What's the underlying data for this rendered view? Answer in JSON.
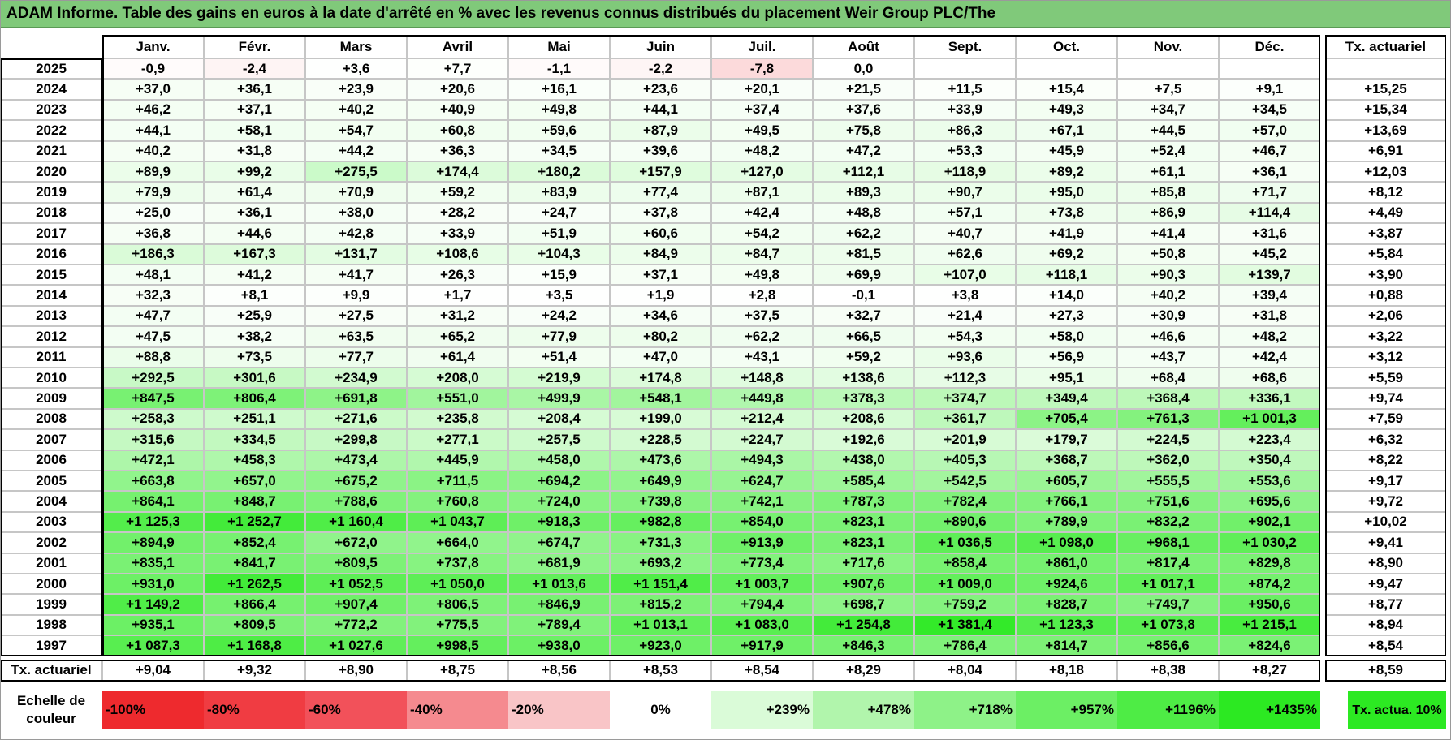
{
  "title": "ADAM Informe. Table des gains en euros à la date d'arrêté en % avec les revenus connus distribués du placement Weir Group PLC/The",
  "chart_data": {
    "type": "table",
    "months": [
      "Janv.",
      "Févr.",
      "Mars",
      "Avril",
      "Mai",
      "Juin",
      "Juil.",
      "Août",
      "Sept.",
      "Oct.",
      "Nov.",
      "Déc."
    ],
    "txa_header": "Tx. actuariel",
    "rows": [
      {
        "year": "2025",
        "values": [
          "-0,9",
          "-2,4",
          "+3,6",
          "+7,7",
          "-1,1",
          "-2,2",
          "-7,8",
          "0,0",
          "",
          "",
          "",
          ""
        ],
        "txa": ""
      },
      {
        "year": "2024",
        "values": [
          "+37,0",
          "+36,1",
          "+23,9",
          "+20,6",
          "+16,1",
          "+23,6",
          "+20,1",
          "+21,5",
          "+11,5",
          "+15,4",
          "+7,5",
          "+9,1"
        ],
        "txa": "+15,25"
      },
      {
        "year": "2023",
        "values": [
          "+46,2",
          "+37,1",
          "+40,2",
          "+40,9",
          "+49,8",
          "+44,1",
          "+37,4",
          "+37,6",
          "+33,9",
          "+49,3",
          "+34,7",
          "+34,5"
        ],
        "txa": "+15,34"
      },
      {
        "year": "2022",
        "values": [
          "+44,1",
          "+58,1",
          "+54,7",
          "+60,8",
          "+59,6",
          "+87,9",
          "+49,5",
          "+75,8",
          "+86,3",
          "+67,1",
          "+44,5",
          "+57,0"
        ],
        "txa": "+13,69"
      },
      {
        "year": "2021",
        "values": [
          "+40,2",
          "+31,8",
          "+44,2",
          "+36,3",
          "+34,5",
          "+39,6",
          "+48,2",
          "+47,2",
          "+53,3",
          "+45,9",
          "+52,4",
          "+46,7"
        ],
        "txa": "+6,91"
      },
      {
        "year": "2020",
        "values": [
          "+89,9",
          "+99,2",
          "+275,5",
          "+174,4",
          "+180,2",
          "+157,9",
          "+127,0",
          "+112,1",
          "+118,9",
          "+89,2",
          "+61,1",
          "+36,1"
        ],
        "txa": "+12,03"
      },
      {
        "year": "2019",
        "values": [
          "+79,9",
          "+61,4",
          "+70,9",
          "+59,2",
          "+83,9",
          "+77,4",
          "+87,1",
          "+89,3",
          "+90,7",
          "+95,0",
          "+85,8",
          "+71,7"
        ],
        "txa": "+8,12"
      },
      {
        "year": "2018",
        "values": [
          "+25,0",
          "+36,1",
          "+38,0",
          "+28,2",
          "+24,7",
          "+37,8",
          "+42,4",
          "+48,8",
          "+57,1",
          "+73,8",
          "+86,9",
          "+114,4"
        ],
        "txa": "+4,49"
      },
      {
        "year": "2017",
        "values": [
          "+36,8",
          "+44,6",
          "+42,8",
          "+33,9",
          "+51,9",
          "+60,6",
          "+54,2",
          "+62,2",
          "+40,7",
          "+41,9",
          "+41,4",
          "+31,6"
        ],
        "txa": "+3,87"
      },
      {
        "year": "2016",
        "values": [
          "+186,3",
          "+167,3",
          "+131,7",
          "+108,6",
          "+104,3",
          "+84,9",
          "+84,7",
          "+81,5",
          "+62,6",
          "+69,2",
          "+50,8",
          "+45,2"
        ],
        "txa": "+5,84"
      },
      {
        "year": "2015",
        "values": [
          "+48,1",
          "+41,2",
          "+41,7",
          "+26,3",
          "+15,9",
          "+37,1",
          "+49,8",
          "+69,9",
          "+107,0",
          "+118,1",
          "+90,3",
          "+139,7"
        ],
        "txa": "+3,90"
      },
      {
        "year": "2014",
        "values": [
          "+32,3",
          "+8,1",
          "+9,9",
          "+1,7",
          "+3,5",
          "+1,9",
          "+2,8",
          "-0,1",
          "+3,8",
          "+14,0",
          "+40,2",
          "+39,4"
        ],
        "txa": "+0,88"
      },
      {
        "year": "2013",
        "values": [
          "+47,7",
          "+25,9",
          "+27,5",
          "+31,2",
          "+24,2",
          "+34,6",
          "+37,5",
          "+32,7",
          "+21,4",
          "+27,3",
          "+30,9",
          "+31,8"
        ],
        "txa": "+2,06"
      },
      {
        "year": "2012",
        "values": [
          "+47,5",
          "+38,2",
          "+63,5",
          "+65,2",
          "+77,9",
          "+80,2",
          "+62,2",
          "+66,5",
          "+54,3",
          "+58,0",
          "+46,6",
          "+48,2"
        ],
        "txa": "+3,22"
      },
      {
        "year": "2011",
        "values": [
          "+88,8",
          "+73,5",
          "+77,7",
          "+61,4",
          "+51,4",
          "+47,0",
          "+43,1",
          "+59,2",
          "+93,6",
          "+56,9",
          "+43,7",
          "+42,4"
        ],
        "txa": "+3,12"
      },
      {
        "year": "2010",
        "values": [
          "+292,5",
          "+301,6",
          "+234,9",
          "+208,0",
          "+219,9",
          "+174,8",
          "+148,8",
          "+138,6",
          "+112,3",
          "+95,1",
          "+68,4",
          "+68,6"
        ],
        "txa": "+5,59"
      },
      {
        "year": "2009",
        "values": [
          "+847,5",
          "+806,4",
          "+691,8",
          "+551,0",
          "+499,9",
          "+548,1",
          "+449,8",
          "+378,3",
          "+374,7",
          "+349,4",
          "+368,4",
          "+336,1"
        ],
        "txa": "+9,74"
      },
      {
        "year": "2008",
        "values": [
          "+258,3",
          "+251,1",
          "+271,6",
          "+235,8",
          "+208,4",
          "+199,0",
          "+212,4",
          "+208,6",
          "+361,7",
          "+705,4",
          "+761,3",
          "+1 001,3"
        ],
        "txa": "+7,59"
      },
      {
        "year": "2007",
        "values": [
          "+315,6",
          "+334,5",
          "+299,8",
          "+277,1",
          "+257,5",
          "+228,5",
          "+224,7",
          "+192,6",
          "+201,9",
          "+179,7",
          "+224,5",
          "+223,4"
        ],
        "txa": "+6,32"
      },
      {
        "year": "2006",
        "values": [
          "+472,1",
          "+458,3",
          "+473,4",
          "+445,9",
          "+458,0",
          "+473,6",
          "+494,3",
          "+438,0",
          "+405,3",
          "+368,7",
          "+362,0",
          "+350,4"
        ],
        "txa": "+8,22"
      },
      {
        "year": "2005",
        "values": [
          "+663,8",
          "+657,0",
          "+675,2",
          "+711,5",
          "+694,2",
          "+649,9",
          "+624,7",
          "+585,4",
          "+542,5",
          "+605,7",
          "+555,5",
          "+553,6"
        ],
        "txa": "+9,17"
      },
      {
        "year": "2004",
        "values": [
          "+864,1",
          "+848,7",
          "+788,6",
          "+760,8",
          "+724,0",
          "+739,8",
          "+742,1",
          "+787,3",
          "+782,4",
          "+766,1",
          "+751,6",
          "+695,6"
        ],
        "txa": "+9,72"
      },
      {
        "year": "2003",
        "values": [
          "+1 125,3",
          "+1 252,7",
          "+1 160,4",
          "+1 043,7",
          "+918,3",
          "+982,8",
          "+854,0",
          "+823,1",
          "+890,6",
          "+789,9",
          "+832,2",
          "+902,1"
        ],
        "txa": "+10,02"
      },
      {
        "year": "2002",
        "values": [
          "+894,9",
          "+852,4",
          "+672,0",
          "+664,0",
          "+674,7",
          "+731,3",
          "+913,9",
          "+823,1",
          "+1 036,5",
          "+1 098,0",
          "+968,1",
          "+1 030,2"
        ],
        "txa": "+9,41"
      },
      {
        "year": "2001",
        "values": [
          "+835,1",
          "+841,7",
          "+809,5",
          "+737,8",
          "+681,9",
          "+693,2",
          "+773,4",
          "+717,6",
          "+858,4",
          "+861,0",
          "+817,4",
          "+829,8"
        ],
        "txa": "+8,90"
      },
      {
        "year": "2000",
        "values": [
          "+931,0",
          "+1 262,5",
          "+1 052,5",
          "+1 050,0",
          "+1 013,6",
          "+1 151,4",
          "+1 003,7",
          "+907,6",
          "+1 009,0",
          "+924,6",
          "+1 017,1",
          "+874,2"
        ],
        "txa": "+9,47"
      },
      {
        "year": "1999",
        "values": [
          "+1 149,2",
          "+866,4",
          "+907,4",
          "+806,5",
          "+846,9",
          "+815,2",
          "+794,4",
          "+698,7",
          "+759,2",
          "+828,7",
          "+749,7",
          "+950,6"
        ],
        "txa": "+8,77"
      },
      {
        "year": "1998",
        "values": [
          "+935,1",
          "+809,5",
          "+772,2",
          "+775,5",
          "+789,4",
          "+1 013,1",
          "+1 083,0",
          "+1 254,8",
          "+1 381,4",
          "+1 123,3",
          "+1 073,8",
          "+1 215,1"
        ],
        "txa": "+8,94"
      },
      {
        "year": "1997",
        "values": [
          "+1 087,3",
          "+1 168,8",
          "+1 027,6",
          "+998,5",
          "+938,0",
          "+923,0",
          "+917,9",
          "+846,3",
          "+786,4",
          "+814,7",
          "+856,6",
          "+824,6"
        ],
        "txa": "+8,54"
      }
    ],
    "footer": {
      "label": "Tx. actuariel",
      "values": [
        "+9,04",
        "+9,32",
        "+8,90",
        "+8,75",
        "+8,56",
        "+8,53",
        "+8,54",
        "+8,29",
        "+8,04",
        "+8,18",
        "+8,38",
        "+8,27"
      ],
      "txa": "+8,59"
    },
    "color_scale": {
      "label": "Echelle de couleur",
      "steps": [
        {
          "label": "-100%",
          "color": "#ee2a2e"
        },
        {
          "label": "-80%",
          "color": "#f03c42"
        },
        {
          "label": "-60%",
          "color": "#f2515a"
        },
        {
          "label": "-40%",
          "color": "#f58a8f"
        },
        {
          "label": "-20%",
          "color": "#f9c5c7"
        },
        {
          "label": "0%",
          "color": "#ffffff"
        },
        {
          "label": "+239%",
          "color": "#dafbd8"
        },
        {
          "label": "+478%",
          "color": "#b1f5ac"
        },
        {
          "label": "+718%",
          "color": "#8ef288"
        },
        {
          "label": "+957%",
          "color": "#6cef64"
        },
        {
          "label": "+1196%",
          "color": "#4eec45"
        },
        {
          "label": "+1435%",
          "color": "#2ce922"
        }
      ],
      "txa_label": "Tx. actua. 10%",
      "txa_color": "#2ce922"
    }
  }
}
